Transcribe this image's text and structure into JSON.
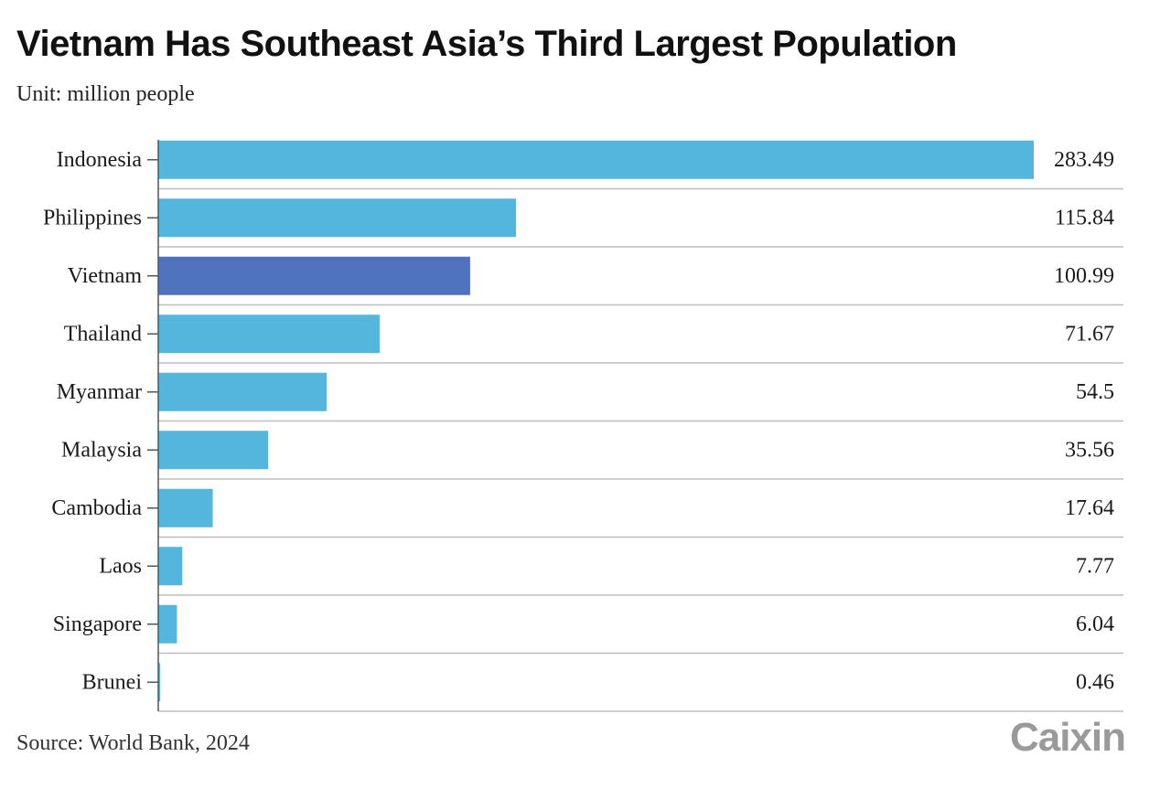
{
  "chart_data": {
    "type": "bar",
    "orientation": "horizontal",
    "title": "Vietnam Has Southeast Asia’s Third Largest Population",
    "subtitle": "Unit: million people",
    "source": "Source: World Bank, 2024",
    "categories": [
      "Indonesia",
      "Philippines",
      "Vietnam",
      "Thailand",
      "Myanmar",
      "Malaysia",
      "Cambodia",
      "Laos",
      "Singapore",
      "Brunei"
    ],
    "values": [
      283.49,
      115.84,
      100.99,
      71.67,
      54.5,
      35.56,
      17.64,
      7.77,
      6.04,
      0.46
    ],
    "value_labels": [
      "283.49",
      "115.84",
      "100.99",
      "71.67",
      "54.5",
      "35.56",
      "17.64",
      "7.77",
      "6.04",
      "0.46"
    ],
    "highlight": "Vietnam",
    "xlim": [
      0,
      283.49
    ],
    "colors": {
      "bar": "#54b6dc",
      "highlight": "#5073be",
      "grid": "#bdbdbd"
    },
    "grid": true,
    "legend": "none"
  },
  "logo": {
    "text": "Caixin"
  }
}
